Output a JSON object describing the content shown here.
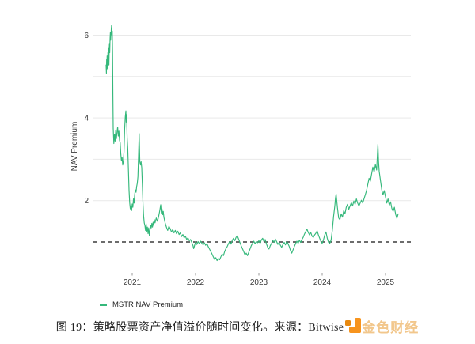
{
  "chart_data": {
    "type": "line",
    "title": "",
    "xlabel": "",
    "ylabel": "NAV Premium",
    "x_ticks": [
      2021,
      2022,
      2023,
      2024,
      2025
    ],
    "y_ticks": [
      2,
      4,
      6
    ],
    "gridline_values": [
      2,
      3,
      4,
      5,
      6
    ],
    "baseline_value": 1,
    "baseline_style": "dashed",
    "xlim": [
      2020.55,
      2025.4
    ],
    "ylim": [
      0.4,
      6.5
    ],
    "grid": true,
    "legend_position": "bottom-left",
    "colors": {
      "grid": "#e9e9e9",
      "baseline": "#141414"
    },
    "series": [
      {
        "name": "MSTR NAV Premium",
        "color": "#35b87b",
        "points": [
          [
            2020.588,
            5.28
          ],
          [
            2020.592,
            5.08
          ],
          [
            2020.596,
            5.42
          ],
          [
            2020.6,
            5.18
          ],
          [
            2020.604,
            5.5
          ],
          [
            2020.608,
            5.3
          ],
          [
            2020.612,
            5.2
          ],
          [
            2020.616,
            5.58
          ],
          [
            2020.62,
            5.4
          ],
          [
            2020.624,
            5.68
          ],
          [
            2020.628,
            5.5
          ],
          [
            2020.632,
            5.28
          ],
          [
            2020.636,
            5.62
          ],
          [
            2020.64,
            5.78
          ],
          [
            2020.645,
            5.58
          ],
          [
            2020.65,
            5.9
          ],
          [
            2020.655,
            6.06
          ],
          [
            2020.66,
            5.88
          ],
          [
            2020.665,
            6.02
          ],
          [
            2020.67,
            6.16
          ],
          [
            2020.675,
            6.24
          ],
          [
            2020.68,
            6.0
          ],
          [
            2020.685,
            6.1
          ],
          [
            2020.69,
            5.55
          ],
          [
            2020.695,
            4.55
          ],
          [
            2020.7,
            3.75
          ],
          [
            2020.71,
            3.38
          ],
          [
            2020.72,
            3.6
          ],
          [
            2020.73,
            3.44
          ],
          [
            2020.74,
            3.7
          ],
          [
            2020.75,
            3.5
          ],
          [
            2020.76,
            3.66
          ],
          [
            2020.77,
            3.78
          ],
          [
            2020.78,
            3.56
          ],
          [
            2020.79,
            3.68
          ],
          [
            2020.8,
            3.46
          ],
          [
            2020.81,
            3.4
          ],
          [
            2020.82,
            3.12
          ],
          [
            2020.83,
            2.96
          ],
          [
            2020.84,
            3.04
          ],
          [
            2020.85,
            2.86
          ],
          [
            2020.86,
            2.94
          ],
          [
            2020.87,
            3.18
          ],
          [
            2020.88,
            3.72
          ],
          [
            2020.89,
            4.02
          ],
          [
            2020.9,
            4.17
          ],
          [
            2020.905,
            3.9
          ],
          [
            2020.91,
            4.08
          ],
          [
            2020.915,
            3.82
          ],
          [
            2020.92,
            3.52
          ],
          [
            2020.93,
            3.25
          ],
          [
            2020.94,
            2.75
          ],
          [
            2020.95,
            2.25
          ],
          [
            2020.96,
            1.95
          ],
          [
            2020.97,
            1.8
          ],
          [
            2020.98,
            1.88
          ],
          [
            2020.99,
            1.76
          ],
          [
            2021.0,
            1.92
          ],
          [
            2021.01,
            1.84
          ],
          [
            2021.02,
            2.04
          ],
          [
            2021.03,
            1.94
          ],
          [
            2021.04,
            2.16
          ],
          [
            2021.05,
            2.26
          ],
          [
            2021.06,
            2.2
          ],
          [
            2021.07,
            2.34
          ],
          [
            2021.08,
            2.42
          ],
          [
            2021.09,
            2.58
          ],
          [
            2021.1,
            3.08
          ],
          [
            2021.11,
            3.62
          ],
          [
            2021.115,
            3.28
          ],
          [
            2021.12,
            2.94
          ],
          [
            2021.13,
            2.86
          ],
          [
            2021.14,
            2.94
          ],
          [
            2021.15,
            2.8
          ],
          [
            2021.16,
            2.38
          ],
          [
            2021.17,
            1.92
          ],
          [
            2021.18,
            1.62
          ],
          [
            2021.19,
            1.46
          ],
          [
            2021.2,
            1.4
          ],
          [
            2021.21,
            1.28
          ],
          [
            2021.22,
            1.44
          ],
          [
            2021.23,
            1.26
          ],
          [
            2021.24,
            1.36
          ],
          [
            2021.25,
            1.2
          ],
          [
            2021.26,
            1.34
          ],
          [
            2021.27,
            1.16
          ],
          [
            2021.28,
            1.28
          ],
          [
            2021.29,
            1.4
          ],
          [
            2021.3,
            1.34
          ],
          [
            2021.31,
            1.45
          ],
          [
            2021.32,
            1.36
          ],
          [
            2021.33,
            1.48
          ],
          [
            2021.34,
            1.4
          ],
          [
            2021.35,
            1.54
          ],
          [
            2021.36,
            1.46
          ],
          [
            2021.38,
            1.58
          ],
          [
            2021.4,
            1.5
          ],
          [
            2021.42,
            1.64
          ],
          [
            2021.435,
            1.76
          ],
          [
            2021.45,
            1.9
          ],
          [
            2021.46,
            1.7
          ],
          [
            2021.47,
            1.8
          ],
          [
            2021.48,
            1.66
          ],
          [
            2021.49,
            1.74
          ],
          [
            2021.5,
            1.6
          ],
          [
            2021.52,
            1.46
          ],
          [
            2021.54,
            1.36
          ],
          [
            2021.56,
            1.28
          ],
          [
            2021.58,
            1.38
          ],
          [
            2021.6,
            1.32
          ],
          [
            2021.62,
            1.24
          ],
          [
            2021.64,
            1.3
          ],
          [
            2021.66,
            1.22
          ],
          [
            2021.68,
            1.28
          ],
          [
            2021.7,
            1.2
          ],
          [
            2021.72,
            1.26
          ],
          [
            2021.74,
            1.18
          ],
          [
            2021.76,
            1.22
          ],
          [
            2021.78,
            1.13
          ],
          [
            2021.8,
            1.18
          ],
          [
            2021.82,
            1.1
          ],
          [
            2021.84,
            1.14
          ],
          [
            2021.86,
            1.06
          ],
          [
            2021.88,
            1.1
          ],
          [
            2021.9,
            1.03
          ],
          [
            2021.92,
            1.06
          ],
          [
            2021.94,
            0.99
          ],
          [
            2021.96,
            0.91
          ],
          [
            2021.97,
            0.84
          ],
          [
            2021.98,
            0.89
          ],
          [
            2021.99,
            0.95
          ],
          [
            2022.0,
            1.0
          ],
          [
            2022.02,
            0.94
          ],
          [
            2022.04,
            1.01
          ],
          [
            2022.06,
            0.96
          ],
          [
            2022.08,
            1.02
          ],
          [
            2022.1,
            0.97
          ],
          [
            2022.12,
            0.93
          ],
          [
            2022.14,
            0.98
          ],
          [
            2022.16,
            0.92
          ],
          [
            2022.18,
            0.96
          ],
          [
            2022.2,
            0.89
          ],
          [
            2022.22,
            0.83
          ],
          [
            2022.24,
            0.77
          ],
          [
            2022.26,
            0.71
          ],
          [
            2022.28,
            0.64
          ],
          [
            2022.3,
            0.58
          ],
          [
            2022.32,
            0.62
          ],
          [
            2022.34,
            0.55
          ],
          [
            2022.36,
            0.6
          ],
          [
            2022.38,
            0.57
          ],
          [
            2022.4,
            0.64
          ],
          [
            2022.42,
            0.71
          ],
          [
            2022.44,
            0.67
          ],
          [
            2022.46,
            0.77
          ],
          [
            2022.48,
            0.84
          ],
          [
            2022.5,
            0.89
          ],
          [
            2022.52,
            0.96
          ],
          [
            2022.54,
            1.01
          ],
          [
            2022.56,
            0.95
          ],
          [
            2022.58,
            1.04
          ],
          [
            2022.6,
            1.09
          ],
          [
            2022.62,
            1.03
          ],
          [
            2022.64,
            1.11
          ],
          [
            2022.66,
            1.15
          ],
          [
            2022.68,
            1.07
          ],
          [
            2022.7,
            0.99
          ],
          [
            2022.72,
            0.91
          ],
          [
            2022.74,
            0.84
          ],
          [
            2022.76,
            0.77
          ],
          [
            2022.78,
            0.69
          ],
          [
            2022.8,
            0.73
          ],
          [
            2022.82,
            0.67
          ],
          [
            2022.84,
            0.75
          ],
          [
            2022.86,
            0.83
          ],
          [
            2022.88,
            0.91
          ],
          [
            2022.9,
            0.97
          ],
          [
            2022.92,
            1.02
          ],
          [
            2022.94,
            0.96
          ],
          [
            2022.96,
            1.01
          ],
          [
            2022.98,
            0.98
          ],
          [
            2023.0,
            1.03
          ],
          [
            2023.02,
            0.97
          ],
          [
            2023.04,
            1.05
          ],
          [
            2023.06,
            1.09
          ],
          [
            2023.08,
            1.01
          ],
          [
            2023.1,
            1.06
          ],
          [
            2023.12,
            0.95
          ],
          [
            2023.14,
            0.87
          ],
          [
            2023.16,
            0.83
          ],
          [
            2023.18,
            0.91
          ],
          [
            2023.2,
            0.97
          ],
          [
            2023.22,
            1.04
          ],
          [
            2023.24,
            0.99
          ],
          [
            2023.26,
            1.07
          ],
          [
            2023.28,
            1.01
          ],
          [
            2023.3,
            0.94
          ],
          [
            2023.32,
            0.99
          ],
          [
            2023.34,
            0.92
          ],
          [
            2023.36,
            0.87
          ],
          [
            2023.38,
            0.94
          ],
          [
            2023.4,
            0.99
          ],
          [
            2023.42,
            0.93
          ],
          [
            2023.44,
            1.01
          ],
          [
            2023.46,
            0.96
          ],
          [
            2023.48,
            0.89
          ],
          [
            2023.5,
            0.79
          ],
          [
            2023.52,
            0.73
          ],
          [
            2023.54,
            0.81
          ],
          [
            2023.56,
            0.89
          ],
          [
            2023.58,
            0.96
          ],
          [
            2023.6,
            1.02
          ],
          [
            2023.62,
            0.97
          ],
          [
            2023.64,
            1.04
          ],
          [
            2023.66,
            0.99
          ],
          [
            2023.68,
            1.06
          ],
          [
            2023.7,
            1.11
          ],
          [
            2023.72,
            1.19
          ],
          [
            2023.74,
            1.25
          ],
          [
            2023.76,
            1.31
          ],
          [
            2023.78,
            1.23
          ],
          [
            2023.8,
            1.17
          ],
          [
            2023.82,
            1.23
          ],
          [
            2023.84,
            1.14
          ],
          [
            2023.86,
            1.11
          ],
          [
            2023.88,
            1.17
          ],
          [
            2023.9,
            1.21
          ],
          [
            2023.92,
            1.27
          ],
          [
            2023.94,
            1.17
          ],
          [
            2023.96,
            1.09
          ],
          [
            2023.98,
            1.01
          ],
          [
            2024.0,
            0.97
          ],
          [
            2024.02,
            1.05
          ],
          [
            2024.04,
            1.17
          ],
          [
            2024.06,
            1.24
          ],
          [
            2024.08,
            1.09
          ],
          [
            2024.1,
            0.99
          ],
          [
            2024.12,
            0.97
          ],
          [
            2024.14,
            1.04
          ],
          [
            2024.16,
            1.28
          ],
          [
            2024.18,
            1.62
          ],
          [
            2024.2,
            1.88
          ],
          [
            2024.21,
            2.06
          ],
          [
            2024.22,
            2.16
          ],
          [
            2024.24,
            1.84
          ],
          [
            2024.26,
            1.58
          ],
          [
            2024.28,
            1.54
          ],
          [
            2024.3,
            1.68
          ],
          [
            2024.32,
            1.6
          ],
          [
            2024.34,
            1.76
          ],
          [
            2024.36,
            1.68
          ],
          [
            2024.38,
            1.84
          ],
          [
            2024.4,
            1.91
          ],
          [
            2024.42,
            1.79
          ],
          [
            2024.44,
            1.87
          ],
          [
            2024.46,
            1.95
          ],
          [
            2024.48,
            1.87
          ],
          [
            2024.5,
            1.99
          ],
          [
            2024.52,
            1.91
          ],
          [
            2024.54,
            2.04
          ],
          [
            2024.56,
            1.94
          ],
          [
            2024.58,
            1.87
          ],
          [
            2024.6,
            1.94
          ],
          [
            2024.62,
            2.01
          ],
          [
            2024.64,
            1.94
          ],
          [
            2024.66,
            2.04
          ],
          [
            2024.68,
            2.14
          ],
          [
            2024.7,
            2.24
          ],
          [
            2024.72,
            2.39
          ],
          [
            2024.74,
            2.54
          ],
          [
            2024.76,
            2.47
          ],
          [
            2024.78,
            2.64
          ],
          [
            2024.8,
            2.81
          ],
          [
            2024.82,
            2.69
          ],
          [
            2024.84,
            2.87
          ],
          [
            2024.86,
            2.74
          ],
          [
            2024.88,
            3.36
          ],
          [
            2024.89,
            2.94
          ],
          [
            2024.9,
            2.71
          ],
          [
            2024.92,
            2.49
          ],
          [
            2024.94,
            2.27
          ],
          [
            2024.96,
            2.14
          ],
          [
            2024.98,
            2.24
          ],
          [
            2025.0,
            2.09
          ],
          [
            2025.02,
            1.94
          ],
          [
            2025.04,
            2.04
          ],
          [
            2025.06,
            1.89
          ],
          [
            2025.08,
            1.97
          ],
          [
            2025.1,
            1.81
          ],
          [
            2025.12,
            1.74
          ],
          [
            2025.14,
            1.84
          ],
          [
            2025.16,
            1.67
          ],
          [
            2025.18,
            1.57
          ],
          [
            2025.2,
            1.68
          ]
        ]
      }
    ]
  },
  "caption": {
    "text": "图 19：策略股票资产净值溢价随时间变化。来源：Bitwise",
    "logo_text": "金色财经"
  }
}
